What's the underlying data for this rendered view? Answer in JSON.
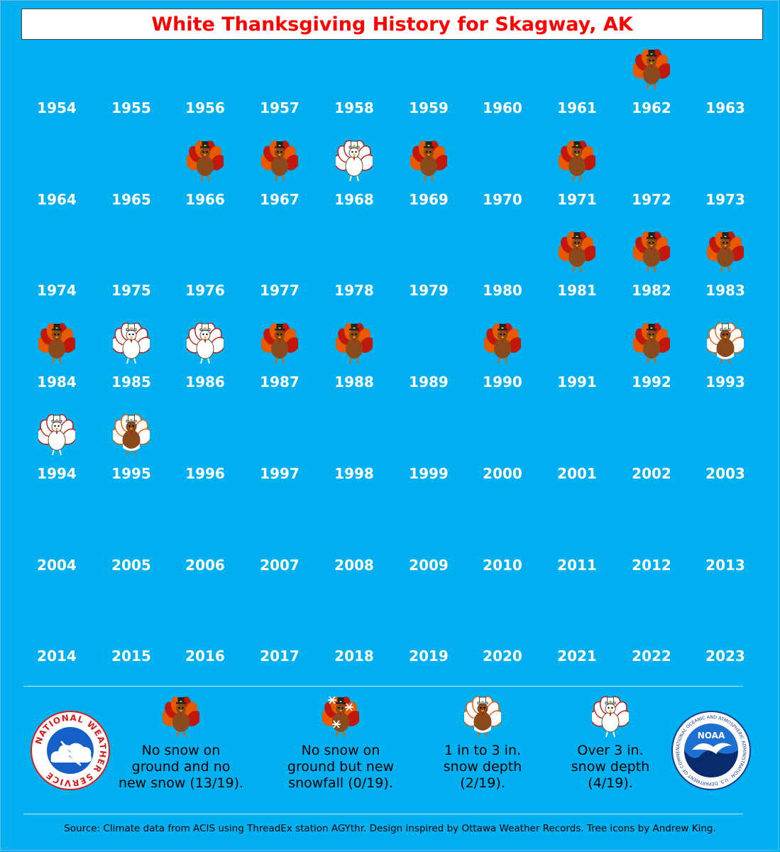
{
  "title": "White Thanksgiving History for Skagway, AK",
  "colors": {
    "background": "#00b0f0",
    "title_text": "#ff0000",
    "feather_orange": "#e85a00",
    "feather_red": "#c0180c",
    "turkey_body": "#8b4a1c",
    "snow_white": "#ffffff",
    "hat": "#222222"
  },
  "chart_data": {
    "type": "table",
    "category_names": {
      "no_snow": "No snow on ground and no new snow",
      "new_snow": "No snow on ground but new snowfall",
      "depth_1_3": "1 in to 3 in. snow depth",
      "depth_over_3": "Over 3 in. snow depth"
    },
    "rows": [
      [
        {
          "year": "1954",
          "status": ""
        },
        {
          "year": "1955",
          "status": ""
        },
        {
          "year": "1956",
          "status": ""
        },
        {
          "year": "1957",
          "status": ""
        },
        {
          "year": "1958",
          "status": ""
        },
        {
          "year": "1959",
          "status": ""
        },
        {
          "year": "1960",
          "status": ""
        },
        {
          "year": "1961",
          "status": ""
        },
        {
          "year": "1962",
          "status": "no_snow"
        },
        {
          "year": "1963",
          "status": ""
        }
      ],
      [
        {
          "year": "1964",
          "status": ""
        },
        {
          "year": "1965",
          "status": ""
        },
        {
          "year": "1966",
          "status": "no_snow"
        },
        {
          "year": "1967",
          "status": "no_snow"
        },
        {
          "year": "1968",
          "status": "depth_over_3"
        },
        {
          "year": "1969",
          "status": "no_snow"
        },
        {
          "year": "1970",
          "status": ""
        },
        {
          "year": "1971",
          "status": "no_snow"
        },
        {
          "year": "1972",
          "status": ""
        },
        {
          "year": "1973",
          "status": ""
        }
      ],
      [
        {
          "year": "1974",
          "status": ""
        },
        {
          "year": "1975",
          "status": ""
        },
        {
          "year": "1976",
          "status": ""
        },
        {
          "year": "1977",
          "status": ""
        },
        {
          "year": "1978",
          "status": ""
        },
        {
          "year": "1979",
          "status": ""
        },
        {
          "year": "1980",
          "status": ""
        },
        {
          "year": "1981",
          "status": "no_snow"
        },
        {
          "year": "1982",
          "status": "no_snow"
        },
        {
          "year": "1983",
          "status": "no_snow"
        }
      ],
      [
        {
          "year": "1984",
          "status": "no_snow"
        },
        {
          "year": "1985",
          "status": "depth_over_3"
        },
        {
          "year": "1986",
          "status": "depth_over_3"
        },
        {
          "year": "1987",
          "status": "no_snow"
        },
        {
          "year": "1988",
          "status": "no_snow"
        },
        {
          "year": "1989",
          "status": ""
        },
        {
          "year": "1990",
          "status": "no_snow"
        },
        {
          "year": "1991",
          "status": ""
        },
        {
          "year": "1992",
          "status": "no_snow"
        },
        {
          "year": "1993",
          "status": "depth_1_3"
        }
      ],
      [
        {
          "year": "1994",
          "status": "depth_over_3"
        },
        {
          "year": "1995",
          "status": "depth_1_3"
        },
        {
          "year": "1996",
          "status": ""
        },
        {
          "year": "1997",
          "status": ""
        },
        {
          "year": "1998",
          "status": ""
        },
        {
          "year": "1999",
          "status": ""
        },
        {
          "year": "2000",
          "status": ""
        },
        {
          "year": "2001",
          "status": ""
        },
        {
          "year": "2002",
          "status": ""
        },
        {
          "year": "2003",
          "status": ""
        }
      ],
      [
        {
          "year": "2004",
          "status": ""
        },
        {
          "year": "2005",
          "status": ""
        },
        {
          "year": "2006",
          "status": ""
        },
        {
          "year": "2007",
          "status": ""
        },
        {
          "year": "2008",
          "status": ""
        },
        {
          "year": "2009",
          "status": ""
        },
        {
          "year": "2010",
          "status": ""
        },
        {
          "year": "2011",
          "status": ""
        },
        {
          "year": "2012",
          "status": ""
        },
        {
          "year": "2013",
          "status": ""
        }
      ],
      [
        {
          "year": "2014",
          "status": ""
        },
        {
          "year": "2015",
          "status": ""
        },
        {
          "year": "2016",
          "status": ""
        },
        {
          "year": "2017",
          "status": ""
        },
        {
          "year": "2018",
          "status": ""
        },
        {
          "year": "2019",
          "status": ""
        },
        {
          "year": "2020",
          "status": ""
        },
        {
          "year": "2021",
          "status": ""
        },
        {
          "year": "2022",
          "status": ""
        },
        {
          "year": "2023",
          "status": ""
        }
      ]
    ],
    "counts": {
      "no_snow": "13/19",
      "new_snow": "0/19",
      "depth_1_3": "2/19",
      "depth_over_3": "4/19"
    }
  },
  "legend": [
    {
      "key": "no_snow",
      "lines": [
        "No snow on",
        "ground and no",
        "new snow (13/19)."
      ]
    },
    {
      "key": "new_snow",
      "lines": [
        "No snow on",
        "ground but new",
        "snowfall (0/19)."
      ]
    },
    {
      "key": "depth_1_3",
      "lines": [
        "1 in to 3 in.",
        "snow depth",
        "(2/19)."
      ]
    },
    {
      "key": "depth_over_3",
      "lines": [
        "Over 3 in.",
        "snow depth",
        "(4/19)."
      ]
    }
  ],
  "logos": {
    "nws_icon": "nws-logo-icon",
    "nws_ring_text": "NATIONAL WEATHER SERVICE",
    "noaa_icon": "noaa-logo-icon",
    "noaa_center_text": "NOAA",
    "noaa_ring_text": "NATIONAL OCEANIC AND ATMOSPHERIC ADMINISTRATION · U.S. DEPARTMENT OF COMMERCE"
  },
  "source": "Source: Climate data from ACIS using ThreadEx station AGYthr. Design inspired by Ottawa Weather Records. Tree icons by Andrew King."
}
